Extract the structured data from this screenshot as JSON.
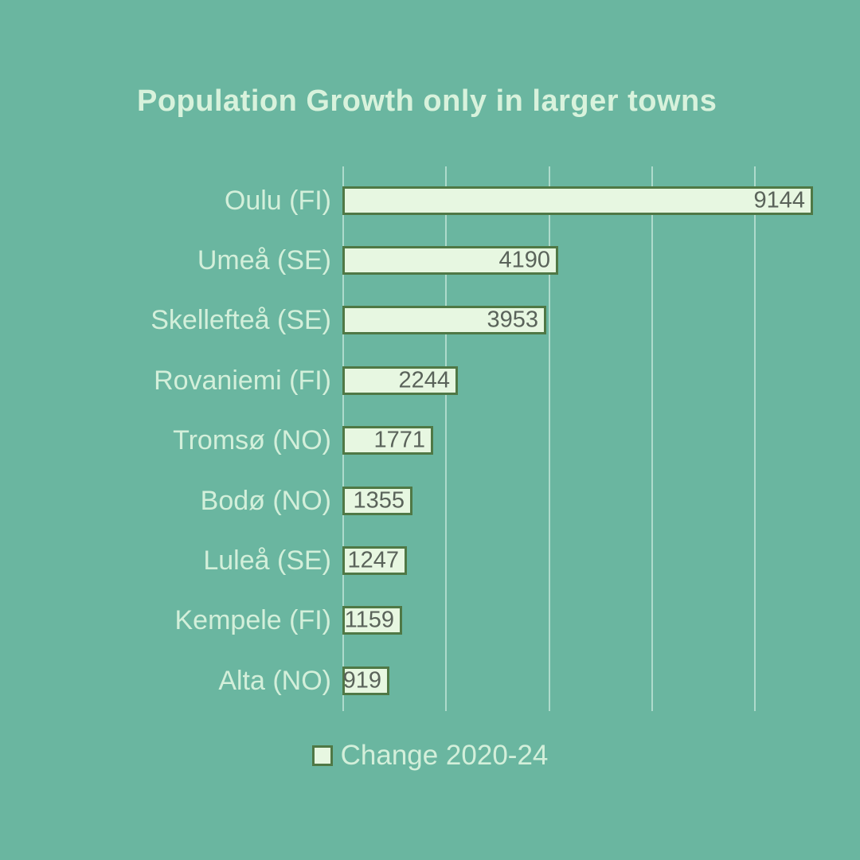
{
  "title": "Population Growth only in larger towns",
  "legend": {
    "label": "Change 2020-24"
  },
  "colors": {
    "background": "#6ab6a0",
    "title_text": "#d8f2dc",
    "label_text": "#d3efda",
    "bar_fill": "#e7f7e1",
    "bar_border": "#4f7845",
    "value_text": "#5a635a",
    "gridline": "#aedbcc"
  },
  "chart_data": {
    "type": "bar",
    "orientation": "horizontal",
    "title": "Population Growth only in larger towns",
    "categories": [
      "Oulu (FI)",
      "Umeå (SE)",
      "Skellefteå (SE)",
      "Rovaniemi (FI)",
      "Tromsø (NO)",
      "Bodø (NO)",
      "Luleå (SE)",
      "Kempele (FI)",
      "Alta (NO)"
    ],
    "values": [
      9144,
      4190,
      3953,
      2244,
      1771,
      1355,
      1247,
      1159,
      919
    ],
    "series_name": "Change 2020-24",
    "value_labels_shown": true,
    "xlim": [
      0,
      10000
    ],
    "gridline_interval": 2000,
    "grid": true,
    "x_tick_labels": [],
    "legend_position": "bottom"
  }
}
